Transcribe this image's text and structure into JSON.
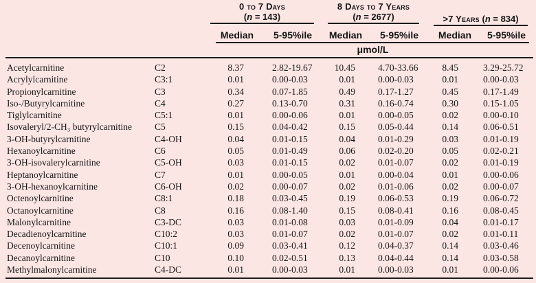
{
  "table": {
    "unit": "μmol/L",
    "groups": [
      {
        "label": "0 to 7 Days",
        "n_open": "(",
        "n_symbol": "n",
        "n_rest": " = 143)"
      },
      {
        "label": "8 Days to 7 Years",
        "n_open": "(",
        "n_symbol": "n",
        "n_rest": " = 2677)"
      },
      {
        "label": ">7 Years",
        "n_open": " (",
        "n_symbol": "n",
        "n_rest": " = 834)"
      }
    ],
    "subheaders": {
      "median": "Median",
      "percentile": "5-95%ile"
    },
    "columns": [
      "compound",
      "abbreviation",
      "median-0-7-days",
      "5-95%ile-0-7-days",
      "median-8-days-7-years",
      "5-95%ile-8-days-7-years",
      "median-gt-7-years",
      "5-95%ile-gt-7-years"
    ],
    "rows": [
      [
        "Acetylcarnitine",
        "C2",
        "8.37",
        "2.82-19.67",
        "10.45",
        "4.70-33.66",
        "8.45",
        "3.29-25.72"
      ],
      [
        "Acrylylcarnitine",
        "C3:1",
        "0.01",
        "0.00-0.03",
        "0.01",
        "0.00-0.03",
        "0.01",
        "0.00-0.03"
      ],
      [
        "Propionylcarnitine",
        "C3",
        "0.34",
        "0.07-1.85",
        "0.49",
        "0.17-1.27",
        "0.45",
        "0.17-1.49"
      ],
      [
        "Iso-/Butyrylcarnitine",
        "C4",
        "0.27",
        "0.13-0.70",
        "0.31",
        "0.16-0.74",
        "0.30",
        "0.15-1.05"
      ],
      [
        "Tiglylcarnitine",
        "C5:1",
        "0.01",
        "0.00-0.06",
        "0.01",
        "0.00-0.05",
        "0.02",
        "0.00-0.10"
      ],
      [
        "Isovaleryl/2-CH₃ butyrylcarnitine",
        "C5",
        "0.15",
        "0.04-0.42",
        "0.15",
        "0.05-0.44",
        "0.14",
        "0.06-0.51"
      ],
      [
        "3-OH-butyrylcarnitine",
        "C4-OH",
        "0.04",
        "0.01-0.15",
        "0.04",
        "0.01-0.29",
        "0.03",
        "0.01-0.19"
      ],
      [
        "Hexanoylcarnitine",
        "C6",
        "0.05",
        "0.01-0.49",
        "0.06",
        "0.02-0.20",
        "0.05",
        "0.02-0.21"
      ],
      [
        "3-OH-isovalerylcarnitine",
        "C5-OH",
        "0.03",
        "0.01-0.15",
        "0.02",
        "0.01-0.07",
        "0.02",
        "0.01-0.19"
      ],
      [
        "Heptanoylcarnitine",
        "C7",
        "0.01",
        "0.00-0.05",
        "0.01",
        "0.00-0.04",
        "0.01",
        "0.00-0.06"
      ],
      [
        "3-OH-hexanoylcarnitine",
        "C6-OH",
        "0.02",
        "0.00-0.07",
        "0.02",
        "0.01-0.06",
        "0.02",
        "0.00-0.07"
      ],
      [
        "Octenoylcarnitine",
        "C8:1",
        "0.18",
        "0.03-0.45",
        "0.19",
        "0.06-0.53",
        "0.19",
        "0.06-0.72"
      ],
      [
        "Octanoylcarnitine",
        "C8",
        "0.16",
        "0.08-1.40",
        "0.15",
        "0.08-0.41",
        "0.16",
        "0.08-0.45"
      ],
      [
        "Malonylcarnitine",
        "C3-DC",
        "0.03",
        "0.01-0.08",
        "0.03",
        "0.01-0.09",
        "0.04",
        "0.01-0.17"
      ],
      [
        "Decadienoylcarnitine",
        "C10:2",
        "0.03",
        "0.01-0.07",
        "0.02",
        "0.01-0.07",
        "0.02",
        "0.01-0.11"
      ],
      [
        "Decenoylcarnitine",
        "C10:1",
        "0.09",
        "0.03-0.41",
        "0.12",
        "0.04-0.37",
        "0.14",
        "0.03-0.46"
      ],
      [
        "Decanoylcarnitine",
        "C10",
        "0.10",
        "0.02-0.51",
        "0.13",
        "0.04-0.44",
        "0.14",
        "0.03-0.58"
      ],
      [
        "Methylmalonylcarnitine",
        "C4-DC",
        "0.01",
        "0.00-0.03",
        "0.01",
        "0.00-0.03",
        "0.01",
        "0.00-0.06"
      ]
    ]
  }
}
